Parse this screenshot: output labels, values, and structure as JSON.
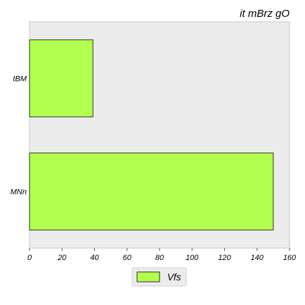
{
  "chart_data": {
    "type": "bar",
    "orientation": "horizontal",
    "title": "it mBrz gO",
    "categories": [
      "tBM",
      "MNn"
    ],
    "series": [
      {
        "name": "Vfs",
        "values": [
          39,
          150
        ]
      }
    ],
    "xlim": [
      0,
      160
    ],
    "xticks": [
      "0",
      "20",
      "40",
      "60",
      "80",
      "100",
      "120",
      "140",
      "160"
    ],
    "xlabel": "",
    "ylabel": "",
    "grid": false,
    "legend_position": "bottom-center",
    "colors": {
      "plot_background": "#ececec",
      "bar_fill": "#b3ff4d",
      "bar_edge": "#000000",
      "frame": "#c8c8c8"
    }
  }
}
